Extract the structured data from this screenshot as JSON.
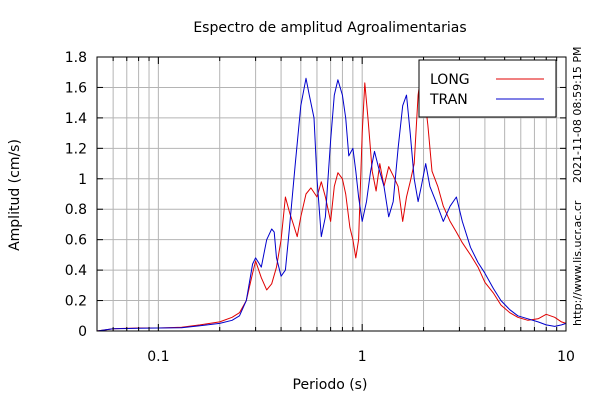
{
  "chart_data": {
    "type": "line",
    "title": "Espectro de amplitud Agroalimentarias",
    "xlabel": "Periodo (s)",
    "ylabel": "Amplitud (cm/s)",
    "x_scale": "log",
    "xlim": [
      0.05,
      10
    ],
    "ylim": [
      0,
      1.8
    ],
    "x_tick_labels": [
      {
        "value": 0.1,
        "label": "0.1"
      },
      {
        "value": 1,
        "label": "1"
      },
      {
        "value": 10,
        "label": "10"
      }
    ],
    "y_tick_labels": [
      "0",
      "0.2",
      "0.4",
      "0.6",
      "0.8",
      "1",
      "1.2",
      "1.4",
      "1.6",
      "1.8"
    ],
    "y_ticks": [
      0,
      0.2,
      0.4,
      0.6,
      0.8,
      1.0,
      1.2,
      1.4,
      1.6,
      1.8
    ],
    "grid": true,
    "legend_position": "top-right",
    "series": [
      {
        "name": "LONG",
        "color": "#e00000",
        "points": [
          [
            0.05,
            0.0
          ],
          [
            0.06,
            0.015
          ],
          [
            0.08,
            0.02
          ],
          [
            0.1,
            0.02
          ],
          [
            0.13,
            0.025
          ],
          [
            0.16,
            0.04
          ],
          [
            0.2,
            0.06
          ],
          [
            0.23,
            0.09
          ],
          [
            0.25,
            0.12
          ],
          [
            0.27,
            0.2
          ],
          [
            0.29,
            0.38
          ],
          [
            0.3,
            0.46
          ],
          [
            0.32,
            0.35
          ],
          [
            0.34,
            0.27
          ],
          [
            0.36,
            0.31
          ],
          [
            0.38,
            0.42
          ],
          [
            0.4,
            0.6
          ],
          [
            0.42,
            0.88
          ],
          [
            0.44,
            0.78
          ],
          [
            0.46,
            0.7
          ],
          [
            0.48,
            0.62
          ],
          [
            0.5,
            0.75
          ],
          [
            0.53,
            0.9
          ],
          [
            0.56,
            0.94
          ],
          [
            0.6,
            0.88
          ],
          [
            0.63,
            0.98
          ],
          [
            0.66,
            0.88
          ],
          [
            0.7,
            0.72
          ],
          [
            0.73,
            0.95
          ],
          [
            0.76,
            1.04
          ],
          [
            0.8,
            1.0
          ],
          [
            0.83,
            0.9
          ],
          [
            0.87,
            0.68
          ],
          [
            0.9,
            0.6
          ],
          [
            0.93,
            0.48
          ],
          [
            0.96,
            0.6
          ],
          [
            1.0,
            1.3
          ],
          [
            1.03,
            1.63
          ],
          [
            1.07,
            1.38
          ],
          [
            1.12,
            1.05
          ],
          [
            1.17,
            0.92
          ],
          [
            1.22,
            1.1
          ],
          [
            1.28,
            0.95
          ],
          [
            1.35,
            1.08
          ],
          [
            1.42,
            1.02
          ],
          [
            1.5,
            0.95
          ],
          [
            1.58,
            0.72
          ],
          [
            1.65,
            0.88
          ],
          [
            1.72,
            0.98
          ],
          [
            1.8,
            1.1
          ],
          [
            1.88,
            1.55
          ],
          [
            1.95,
            1.7
          ],
          [
            2.02,
            1.55
          ],
          [
            2.1,
            1.35
          ],
          [
            2.2,
            1.05
          ],
          [
            2.35,
            0.95
          ],
          [
            2.5,
            0.82
          ],
          [
            2.7,
            0.72
          ],
          [
            2.9,
            0.65
          ],
          [
            3.1,
            0.58
          ],
          [
            3.4,
            0.5
          ],
          [
            3.7,
            0.42
          ],
          [
            4.0,
            0.32
          ],
          [
            4.4,
            0.25
          ],
          [
            4.8,
            0.17
          ],
          [
            5.3,
            0.12
          ],
          [
            5.8,
            0.09
          ],
          [
            6.5,
            0.07
          ],
          [
            7.3,
            0.08
          ],
          [
            8.0,
            0.11
          ],
          [
            8.8,
            0.09
          ],
          [
            9.5,
            0.06
          ],
          [
            10.0,
            0.05
          ]
        ]
      },
      {
        "name": "TRAN",
        "color": "#0000cc",
        "points": [
          [
            0.05,
            0.0
          ],
          [
            0.06,
            0.015
          ],
          [
            0.08,
            0.018
          ],
          [
            0.1,
            0.02
          ],
          [
            0.13,
            0.022
          ],
          [
            0.16,
            0.035
          ],
          [
            0.2,
            0.05
          ],
          [
            0.23,
            0.07
          ],
          [
            0.25,
            0.1
          ],
          [
            0.27,
            0.2
          ],
          [
            0.29,
            0.44
          ],
          [
            0.3,
            0.48
          ],
          [
            0.31,
            0.45
          ],
          [
            0.32,
            0.42
          ],
          [
            0.34,
            0.6
          ],
          [
            0.36,
            0.67
          ],
          [
            0.37,
            0.65
          ],
          [
            0.38,
            0.48
          ],
          [
            0.4,
            0.36
          ],
          [
            0.42,
            0.4
          ],
          [
            0.44,
            0.68
          ],
          [
            0.47,
            1.1
          ],
          [
            0.5,
            1.48
          ],
          [
            0.53,
            1.66
          ],
          [
            0.55,
            1.55
          ],
          [
            0.58,
            1.4
          ],
          [
            0.6,
            1.0
          ],
          [
            0.63,
            0.62
          ],
          [
            0.66,
            0.75
          ],
          [
            0.7,
            1.25
          ],
          [
            0.73,
            1.55
          ],
          [
            0.76,
            1.65
          ],
          [
            0.8,
            1.55
          ],
          [
            0.83,
            1.4
          ],
          [
            0.86,
            1.15
          ],
          [
            0.9,
            1.2
          ],
          [
            0.93,
            1.05
          ],
          [
            0.96,
            0.88
          ],
          [
            1.0,
            0.72
          ],
          [
            1.05,
            0.85
          ],
          [
            1.1,
            1.05
          ],
          [
            1.15,
            1.18
          ],
          [
            1.2,
            1.08
          ],
          [
            1.28,
            0.95
          ],
          [
            1.35,
            0.75
          ],
          [
            1.42,
            0.85
          ],
          [
            1.5,
            1.2
          ],
          [
            1.58,
            1.48
          ],
          [
            1.65,
            1.55
          ],
          [
            1.72,
            1.3
          ],
          [
            1.8,
            1.0
          ],
          [
            1.88,
            0.85
          ],
          [
            1.95,
            0.95
          ],
          [
            2.05,
            1.1
          ],
          [
            2.15,
            0.95
          ],
          [
            2.3,
            0.85
          ],
          [
            2.5,
            0.72
          ],
          [
            2.7,
            0.82
          ],
          [
            2.9,
            0.88
          ],
          [
            3.1,
            0.72
          ],
          [
            3.4,
            0.55
          ],
          [
            3.7,
            0.45
          ],
          [
            4.0,
            0.38
          ],
          [
            4.4,
            0.28
          ],
          [
            4.8,
            0.2
          ],
          [
            5.3,
            0.14
          ],
          [
            5.8,
            0.1
          ],
          [
            6.5,
            0.08
          ],
          [
            7.3,
            0.06
          ],
          [
            8.0,
            0.04
          ],
          [
            8.8,
            0.03
          ],
          [
            9.5,
            0.04
          ],
          [
            10.0,
            0.05
          ]
        ]
      }
    ]
  },
  "side_labels": {
    "timestamp": "2021-11-08 08:59:15 PM",
    "url": "http://www.lis.ucr.ac.cr"
  }
}
